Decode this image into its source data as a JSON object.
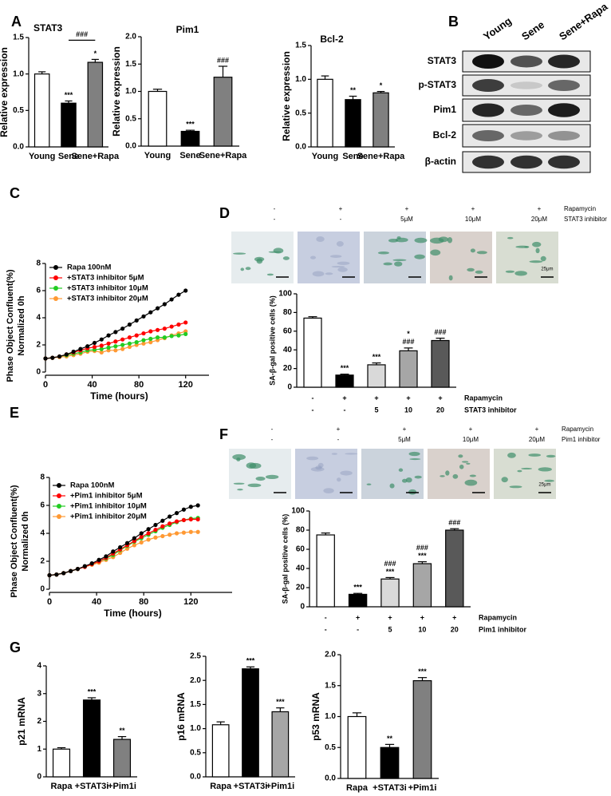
{
  "panels": [
    "A",
    "B",
    "C",
    "D",
    "E",
    "F",
    "G"
  ],
  "blot": {
    "lanes": [
      "Young",
      "Sene",
      "Sene+Rapa"
    ],
    "rows": [
      "STAT3",
      "p-STAT3",
      "Pim1",
      "Bcl-2",
      "β-actin"
    ]
  },
  "chart_data": [
    {
      "type": "bar",
      "title": "STAT3",
      "ylabel": "Relative expression",
      "categories": [
        "Young",
        "Sene",
        "Sene+Rapa"
      ],
      "values": [
        1.0,
        0.6,
        1.16
      ],
      "errors": [
        0.03,
        0.03,
        0.04
      ],
      "colors": [
        "#ffffff",
        "#000000",
        "#808080"
      ],
      "marks": [
        null,
        "***",
        "*"
      ],
      "bracket_label": "###",
      "ylim": [
        0,
        1.5
      ],
      "yticks": [
        {
          "value": 0,
          "label": "0.0"
        },
        0.5,
        {
          "value": 1,
          "label": "1.0"
        },
        1.5
      ]
    },
    {
      "type": "bar",
      "title": "Pim1",
      "ylabel": "Relative expression",
      "categories": [
        "Young",
        "Sene",
        "Sene+Rapa"
      ],
      "values": [
        1.0,
        0.27,
        1.26
      ],
      "errors": [
        0.04,
        0.02,
        0.2
      ],
      "colors": [
        "#ffffff",
        "#000000",
        "#808080"
      ],
      "marks": [
        null,
        "***",
        "###"
      ],
      "ylim": [
        0,
        2
      ],
      "yticks": [
        {
          "value": 0,
          "label": "0.0"
        },
        0.5,
        {
          "value": 1,
          "label": "1.0"
        },
        1.5,
        {
          "value": 2,
          "label": "2.0"
        }
      ]
    },
    {
      "type": "bar",
      "title": "Bcl-2",
      "ylabel": "Relative expression",
      "categories": [
        "Young",
        "Sene",
        "Sene+Rapa"
      ],
      "values": [
        1.0,
        0.7,
        0.8
      ],
      "errors": [
        0.05,
        0.05,
        0.02
      ],
      "colors": [
        "#ffffff",
        "#000000",
        "#808080"
      ],
      "marks": [
        null,
        "**",
        "*"
      ],
      "ylim": [
        0,
        1.5
      ],
      "yticks": [
        {
          "value": 0,
          "label": "0.0"
        },
        0.5,
        {
          "value": 1,
          "label": "1.0"
        },
        1.5
      ]
    },
    {
      "type": "line",
      "ylabel": [
        "Phase Object Confluent(%)",
        "Normalized 0h"
      ],
      "xlabel": "Time (hours)",
      "legend": "upper left",
      "x": [
        0,
        6,
        12,
        18,
        24,
        30,
        36,
        42,
        48,
        54,
        60,
        66,
        72,
        78,
        84,
        90,
        96,
        102,
        108,
        114,
        120
      ],
      "series": [
        {
          "name": "Rapa 100nM",
          "color": "#000000",
          "values": [
            1.0,
            1.05,
            1.15,
            1.3,
            1.5,
            1.7,
            1.9,
            2.15,
            2.4,
            2.7,
            2.95,
            3.2,
            3.5,
            3.8,
            4.1,
            4.4,
            4.7,
            5.0,
            5.35,
            5.7,
            6.0
          ]
        },
        {
          "name": "+STAT3 inhibitor 5μM",
          "color": "#ff0000",
          "values": [
            1.0,
            1.05,
            1.15,
            1.3,
            1.45,
            1.6,
            1.75,
            1.85,
            1.95,
            2.1,
            2.25,
            2.4,
            2.55,
            2.7,
            2.85,
            3.0,
            3.1,
            3.2,
            3.35,
            3.5,
            3.65
          ]
        },
        {
          "name": "+STAT3 inhibitor 10μM",
          "color": "#22cc22",
          "values": [
            1.0,
            1.05,
            1.15,
            1.25,
            1.35,
            1.45,
            1.6,
            1.65,
            1.7,
            1.8,
            1.9,
            2.0,
            2.1,
            2.2,
            2.35,
            2.45,
            2.55,
            2.55,
            2.65,
            2.7,
            2.8
          ]
        },
        {
          "name": "+STAT3 inhibitor 20μM",
          "color": "#ff9933",
          "values": [
            1.0,
            1.05,
            1.1,
            1.15,
            1.25,
            1.35,
            1.5,
            1.55,
            1.45,
            1.6,
            1.6,
            1.7,
            1.85,
            2.0,
            2.1,
            2.2,
            2.35,
            2.5,
            2.7,
            2.85,
            3.0
          ]
        }
      ],
      "xlim": [
        0,
        140
      ],
      "xticks": [
        0,
        40,
        80,
        120
      ],
      "ylim": [
        0,
        8
      ],
      "yticks": [
        0,
        2,
        4,
        6,
        8
      ]
    },
    {
      "type": "bar",
      "ylabel": "SA-β-gal positive cells (%)",
      "image_labels": {
        "rows": [
          {
            "name": "Rapamycin",
            "values": [
              "-",
              "+",
              "+",
              "+",
              "+"
            ]
          },
          {
            "name": "STAT3 inhibitor",
            "values": [
              "-",
              "-",
              "5μM",
              "10μM",
              "20μM"
            ]
          }
        ],
        "scale_bar": "25μm"
      },
      "condition_rows": [
        {
          "name": "Rapamycin",
          "values": [
            "-",
            "+",
            "+",
            "+",
            "+"
          ]
        },
        {
          "name": "STAT3 inhibitor",
          "values": [
            "-",
            "-",
            "5",
            "10",
            "20"
          ]
        }
      ],
      "values": [
        74,
        13,
        24,
        39,
        50
      ],
      "errors": [
        1.5,
        1,
        2,
        3,
        2.5
      ],
      "colors": [
        "#ffffff",
        "#000000",
        "#d9d9d9",
        "#a6a6a6",
        "#595959"
      ],
      "marks": [
        null,
        [
          "***"
        ],
        [
          "***"
        ],
        [
          "*",
          "###"
        ],
        [
          "###"
        ]
      ],
      "ylim": [
        0,
        100
      ],
      "yticks": [
        0,
        20,
        40,
        60,
        80,
        100
      ]
    },
    {
      "type": "line",
      "ylabel": [
        "Phase Object Confluent(%)",
        "Normalized 0h"
      ],
      "xlabel": "Time (hours)",
      "legend": "upper left",
      "x": [
        0,
        6,
        12,
        18,
        24,
        30,
        36,
        42,
        48,
        54,
        60,
        66,
        72,
        78,
        84,
        90,
        96,
        102,
        108,
        114,
        120,
        126
      ],
      "series": [
        {
          "name": "Rapa 100nM",
          "color": "#000000",
          "values": [
            1.0,
            1.05,
            1.15,
            1.3,
            1.45,
            1.65,
            1.85,
            2.1,
            2.35,
            2.7,
            3.0,
            3.3,
            3.65,
            4.0,
            4.3,
            4.6,
            4.9,
            5.2,
            5.45,
            5.7,
            5.9,
            6.0
          ]
        },
        {
          "name": "+Pim1 inhibitor 5μM",
          "color": "#ff0000",
          "values": [
            1.0,
            1.05,
            1.15,
            1.3,
            1.45,
            1.6,
            1.8,
            2.0,
            2.25,
            2.55,
            2.85,
            3.15,
            3.45,
            3.75,
            4.0,
            4.25,
            4.5,
            4.7,
            4.85,
            4.95,
            5.0,
            5.0
          ]
        },
        {
          "name": "+Pim1 inhibitor 10μM",
          "color": "#22cc22",
          "values": [
            1.0,
            1.05,
            1.15,
            1.3,
            1.45,
            1.6,
            1.8,
            2.0,
            2.2,
            2.45,
            2.8,
            3.1,
            3.4,
            3.65,
            3.9,
            4.15,
            4.4,
            4.6,
            4.8,
            4.95,
            5.05,
            5.1
          ]
        },
        {
          "name": "+Pim1 inhibitor 20μM",
          "color": "#ff9933",
          "values": [
            1.0,
            1.05,
            1.15,
            1.3,
            1.45,
            1.6,
            1.75,
            1.9,
            2.1,
            2.3,
            2.6,
            2.9,
            3.15,
            3.35,
            3.55,
            3.7,
            3.8,
            3.9,
            4.0,
            4.05,
            4.1,
            4.1
          ]
        }
      ],
      "xlim": [
        0,
        155
      ],
      "xticks": [
        0,
        40,
        80,
        120
      ],
      "ylim": [
        0,
        8
      ],
      "yticks": [
        0,
        2,
        4,
        6,
        8
      ]
    },
    {
      "type": "bar",
      "ylabel": "SA-β-gal positive cells (%)",
      "image_labels": {
        "rows": [
          {
            "name": "Rapamycin",
            "values": [
              "-",
              "+",
              "+",
              "+",
              "+"
            ]
          },
          {
            "name": "Pim1 inhibitor",
            "values": [
              "-",
              "-",
              "5μM",
              "10μM",
              "20μM"
            ]
          }
        ],
        "scale_bar": "25μm"
      },
      "condition_rows": [
        {
          "name": "Rapamycin",
          "values": [
            "-",
            "+",
            "+",
            "+",
            "+"
          ]
        },
        {
          "name": "Pim1 inhibitor",
          "values": [
            "-",
            "-",
            "5",
            "10",
            "20"
          ]
        }
      ],
      "values": [
        75,
        13,
        29,
        45,
        80
      ],
      "errors": [
        2,
        1,
        1.5,
        2,
        1.5
      ],
      "colors": [
        "#ffffff",
        "#000000",
        "#d9d9d9",
        "#a6a6a6",
        "#595959"
      ],
      "marks": [
        null,
        [
          "***"
        ],
        [
          "###",
          "***"
        ],
        [
          "###",
          "***"
        ],
        [
          "###"
        ]
      ],
      "ylim": [
        0,
        100
      ],
      "yticks": [
        0,
        20,
        40,
        60,
        80,
        100
      ]
    },
    {
      "type": "bar",
      "ylabel": "p21 mRNA",
      "categories": [
        "Rapa",
        "+STAT3i",
        "+Pim1i"
      ],
      "values": [
        1.0,
        2.77,
        1.35
      ],
      "errors": [
        0.05,
        0.08,
        0.1
      ],
      "colors": [
        "#ffffff",
        "#000000",
        "#808080"
      ],
      "marks": [
        null,
        "***",
        "**"
      ],
      "ylim": [
        0,
        4
      ],
      "yticks": [
        0,
        1,
        2,
        3,
        4
      ]
    },
    {
      "type": "bar",
      "ylabel": "p16 mRNA",
      "categories": [
        "Rapa",
        "+STAT3i",
        "+Pim1i"
      ],
      "values": [
        1.08,
        2.24,
        1.35
      ],
      "errors": [
        0.06,
        0.04,
        0.08
      ],
      "colors": [
        "#ffffff",
        "#000000",
        "#a6a6a6"
      ],
      "marks": [
        null,
        "***",
        "***"
      ],
      "ylim": [
        0,
        2.5
      ],
      "yticks": [
        {
          "value": 0,
          "label": "0.0"
        },
        0.5,
        {
          "value": 1,
          "label": "1.0"
        },
        1.5,
        {
          "value": 2,
          "label": "2.0"
        },
        2.5
      ]
    },
    {
      "type": "bar",
      "ylabel": "p53 mRNA",
      "categories": [
        "Rapa",
        "+STAT3i",
        "+Pim1i"
      ],
      "values": [
        1.0,
        0.5,
        1.58
      ],
      "errors": [
        0.06,
        0.05,
        0.05
      ],
      "colors": [
        "#ffffff",
        "#000000",
        "#808080"
      ],
      "marks": [
        null,
        "**",
        "***"
      ],
      "ylim": [
        0,
        2
      ],
      "yticks": [
        {
          "value": 0,
          "label": "0.0"
        },
        0.5,
        {
          "value": 1,
          "label": "1.0"
        },
        1.5,
        {
          "value": 2,
          "label": "2.0"
        }
      ]
    }
  ]
}
